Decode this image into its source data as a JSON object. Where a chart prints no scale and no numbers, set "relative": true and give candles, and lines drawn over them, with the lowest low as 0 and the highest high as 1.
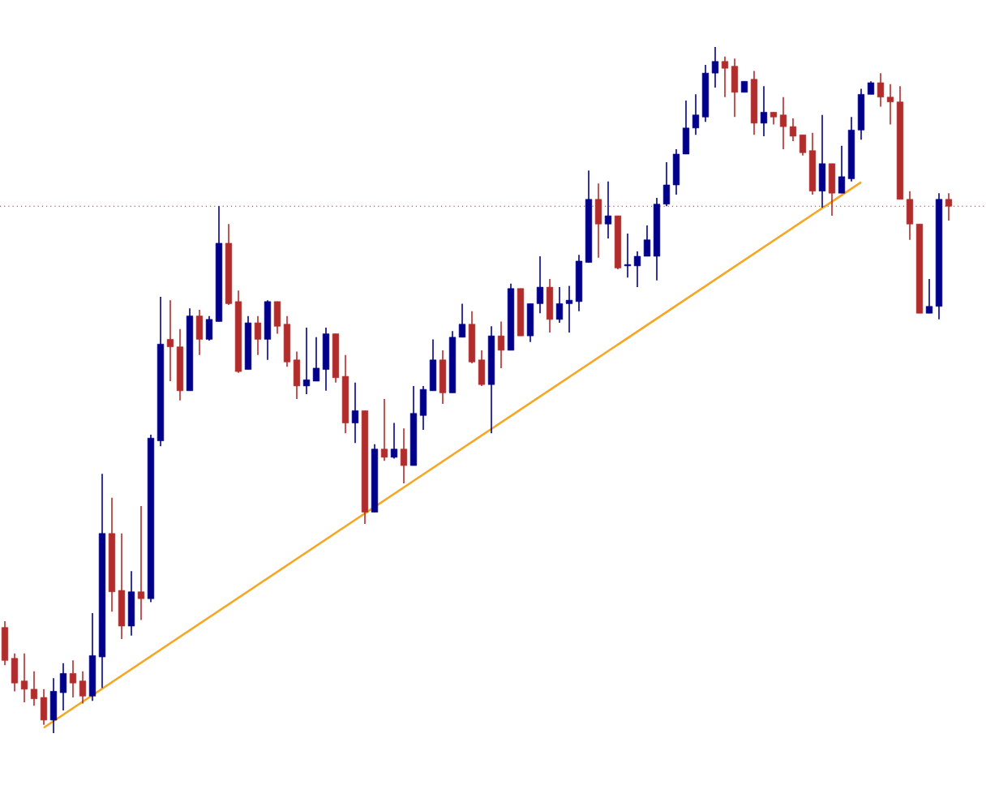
{
  "chart_data": {
    "type": "candlestick",
    "relative": true,
    "categories": [
      null,
      null,
      null,
      null,
      null,
      null,
      null,
      null,
      null,
      null,
      null,
      null,
      null,
      null,
      null,
      null,
      null,
      null,
      null,
      null,
      null,
      null,
      null,
      null,
      null,
      null,
      null,
      null,
      null,
      null,
      null,
      null,
      null,
      null,
      null,
      null,
      null,
      null,
      null,
      null,
      null,
      null,
      null,
      null,
      null,
      null,
      null,
      null,
      null,
      null,
      null,
      null,
      null,
      null,
      null,
      null,
      null,
      null,
      null,
      null,
      null,
      null,
      null,
      null,
      null,
      null,
      null,
      null,
      null,
      null,
      null,
      null,
      null,
      null,
      null,
      null,
      null,
      null,
      null,
      null,
      null,
      null,
      null,
      null,
      null,
      null,
      null,
      null,
      null,
      null,
      null,
      null,
      null,
      null,
      null,
      null,
      null,
      null
    ],
    "ohlc": [
      [
        0.154,
        0.163,
        0.099,
        0.106
      ],
      [
        0.109,
        0.116,
        0.061,
        0.073
      ],
      [
        0.076,
        0.116,
        0.045,
        0.064
      ],
      [
        0.064,
        0.09,
        0.04,
        0.05
      ],
      [
        0.052,
        0.064,
        0.012,
        0.019
      ],
      [
        0.019,
        0.08,
        0,
        0.061
      ],
      [
        0.059,
        0.102,
        0.033,
        0.087
      ],
      [
        0.087,
        0.106,
        0.052,
        0.073
      ],
      [
        0.076,
        0.09,
        0.043,
        0.054
      ],
      [
        0.054,
        0.175,
        0.047,
        0.113
      ],
      [
        0.111,
        0.378,
        0.066,
        0.291
      ],
      [
        0.291,
        0.343,
        0.177,
        0.206
      ],
      [
        0.208,
        0.291,
        0.137,
        0.156
      ],
      [
        0.156,
        0.236,
        0.142,
        0.206
      ],
      [
        0.206,
        0.331,
        0.165,
        0.196
      ],
      [
        0.196,
        0.435,
        0.191,
        0.43
      ],
      [
        0.426,
        0.636,
        0.418,
        0.567
      ],
      [
        0.574,
        0.631,
        0.513,
        0.563
      ],
      [
        0.563,
        0.589,
        0.485,
        0.499
      ],
      [
        0.499,
        0.619,
        0.499,
        0.608
      ],
      [
        0.608,
        0.617,
        0.551,
        0.574
      ],
      [
        0.574,
        0.608,
        0.572,
        0.603
      ],
      [
        0.6,
        0.768,
        0.6,
        0.714
      ],
      [
        0.714,
        0.742,
        0.624,
        0.626
      ],
      [
        0.629,
        0.645,
        0.525,
        0.527
      ],
      [
        0.53,
        0.608,
        0.53,
        0.598
      ],
      [
        0.598,
        0.608,
        0.551,
        0.574
      ],
      [
        0.574,
        0.631,
        0.544,
        0.629
      ],
      [
        0.629,
        0.629,
        0.582,
        0.593
      ],
      [
        0.596,
        0.608,
        0.534,
        0.541
      ],
      [
        0.544,
        0.556,
        0.487,
        0.506
      ],
      [
        0.506,
        0.591,
        0.494,
        0.515
      ],
      [
        0.513,
        0.577,
        0.513,
        0.532
      ],
      [
        0.53,
        0.591,
        0.499,
        0.582
      ],
      [
        0.582,
        0.582,
        0.511,
        0.518
      ],
      [
        0.52,
        0.551,
        0.437,
        0.452
      ],
      [
        0.452,
        0.511,
        0.423,
        0.47
      ],
      [
        0.47,
        0.47,
        0.305,
        0.322
      ],
      [
        0.322,
        0.421,
        0.322,
        0.414
      ],
      [
        0.414,
        0.487,
        0.397,
        0.402
      ],
      [
        0.402,
        0.452,
        0.4,
        0.414
      ],
      [
        0.414,
        0.444,
        0.364,
        0.39
      ],
      [
        0.39,
        0.506,
        0.39,
        0.466
      ],
      [
        0.463,
        0.506,
        0.442,
        0.501
      ],
      [
        0.499,
        0.574,
        0.499,
        0.544
      ],
      [
        0.544,
        0.558,
        0.48,
        0.496
      ],
      [
        0.496,
        0.586,
        0.496,
        0.577
      ],
      [
        0.577,
        0.626,
        0.577,
        0.596
      ],
      [
        0.596,
        0.615,
        0.539,
        0.541
      ],
      [
        0.544,
        0.558,
        0.506,
        0.508
      ],
      [
        0.508,
        0.593,
        0.437,
        0.579
      ],
      [
        0.579,
        0.6,
        0.532,
        0.558
      ],
      [
        0.558,
        0.655,
        0.558,
        0.648
      ],
      [
        0.648,
        0.648,
        0.579,
        0.579
      ],
      [
        0.579,
        0.626,
        0.57,
        0.626
      ],
      [
        0.626,
        0.695,
        0.612,
        0.65
      ],
      [
        0.65,
        0.662,
        0.584,
        0.603
      ],
      [
        0.603,
        0.65,
        0.598,
        0.626
      ],
      [
        0.626,
        0.652,
        0.584,
        0.631
      ],
      [
        0.629,
        0.697,
        0.615,
        0.688
      ],
      [
        0.686,
        0.82,
        0.686,
        0.778
      ],
      [
        0.778,
        0.801,
        0.693,
        0.742
      ],
      [
        0.742,
        0.804,
        0.721,
        0.754
      ],
      [
        0.754,
        0.754,
        0.676,
        0.678
      ],
      [
        0.681,
        0.728,
        0.664,
        0.683
      ],
      [
        0.681,
        0.702,
        0.65,
        0.695
      ],
      [
        0.695,
        0.74,
        0.695,
        0.719
      ],
      [
        0.695,
        0.78,
        0.66,
        0.771
      ],
      [
        0.771,
        0.832,
        0.768,
        0.799
      ],
      [
        0.799,
        0.851,
        0.785,
        0.844
      ],
      [
        0.844,
        0.922,
        0.844,
        0.882
      ],
      [
        0.882,
        0.931,
        0.872,
        0.901
      ],
      [
        0.898,
        0.974,
        0.891,
        0.962
      ],
      [
        0.962,
        1,
        0.941,
        0.979
      ],
      [
        0.979,
        0.986,
        0.927,
        0.969
      ],
      [
        0.972,
        0.983,
        0.898,
        0.934
      ],
      [
        0.934,
        0.95,
        0.934,
        0.95
      ],
      [
        0.953,
        0.965,
        0.872,
        0.889
      ],
      [
        0.889,
        0.943,
        0.87,
        0.905
      ],
      [
        0.905,
        0.905,
        0.887,
        0.898
      ],
      [
        0.901,
        0.927,
        0.851,
        0.884
      ],
      [
        0.884,
        0.896,
        0.863,
        0.87
      ],
      [
        0.872,
        0.872,
        0.842,
        0.846
      ],
      [
        0.849,
        0.875,
        0.785,
        0.79
      ],
      [
        0.79,
        0.901,
        0.766,
        0.83
      ],
      [
        0.83,
        0.83,
        0.754,
        0.787
      ],
      [
        0.787,
        0.856,
        0.787,
        0.811
      ],
      [
        0.808,
        0.898,
        0.804,
        0.879
      ],
      [
        0.879,
        0.939,
        0.865,
        0.931
      ],
      [
        0.931,
        0.95,
        0.931,
        0.948
      ],
      [
        0.948,
        0.962,
        0.913,
        0.927
      ],
      [
        0.927,
        0.946,
        0.887,
        0.92
      ],
      [
        0.92,
        0.943,
        0.778,
        0.778
      ],
      [
        0.778,
        0.79,
        0.719,
        0.742
      ],
      [
        0.742,
        0.742,
        0.612,
        0.612
      ],
      [
        0.612,
        0.662,
        0.612,
        0.622
      ],
      [
        0.622,
        0.787,
        0.603,
        0.778
      ],
      [
        0.778,
        0.787,
        0.747,
        0.768
      ]
    ],
    "colors": [
      "#b22c2c",
      "#b22c2c",
      "#b22c2c",
      "#b22c2c",
      "#b22c2c",
      "#00008b",
      "#00008b",
      "#b22c2c",
      "#b22c2c",
      "#00008b",
      "#00008b",
      "#b22c2c",
      "#b22c2c",
      "#00008b",
      "#b22c2c",
      "#00008b",
      "#00008b",
      "#b22c2c",
      "#b22c2c",
      "#00008b",
      "#b22c2c",
      "#00008b",
      "#00008b",
      "#b22c2c",
      "#b22c2c",
      "#00008b",
      "#b22c2c",
      "#00008b",
      "#b22c2c",
      "#b22c2c",
      "#b22c2c",
      "#00008b",
      "#00008b",
      "#00008b",
      "#b22c2c",
      "#b22c2c",
      "#00008b",
      "#b22c2c",
      "#00008b",
      "#b22c2c",
      "#00008b",
      "#b22c2c",
      "#00008b",
      "#00008b",
      "#00008b",
      "#b22c2c",
      "#00008b",
      "#00008b",
      "#b22c2c",
      "#b22c2c",
      "#00008b",
      "#b22c2c",
      "#00008b",
      "#b22c2c",
      "#00008b",
      "#00008b",
      "#b22c2c",
      "#00008b",
      "#00008b",
      "#00008b",
      "#00008b",
      "#b22c2c",
      "#00008b",
      "#b22c2c",
      "#00008b",
      "#00008b",
      "#00008b",
      "#00008b",
      "#00008b",
      "#00008b",
      "#00008b",
      "#00008b",
      "#00008b",
      "#00008b",
      "#b22c2c",
      "#b22c2c",
      "#00008b",
      "#b22c2c",
      "#00008b",
      "#b22c2c",
      "#b22c2c",
      "#b22c2c",
      "#b22c2c",
      "#b22c2c",
      "#00008b",
      "#b22c2c",
      "#00008b",
      "#00008b",
      "#00008b",
      "#00008b",
      "#b22c2c",
      "#b22c2c",
      "#b22c2c",
      "#b22c2c",
      "#b22c2c",
      "#00008b",
      "#00008b",
      "#b22c2c"
    ],
    "series": [
      {
        "type": "line",
        "values": [
          null,
          null,
          null,
          null,
          0.008,
          null,
          null,
          null,
          null,
          null,
          null,
          null,
          null,
          null,
          null,
          null,
          null,
          null,
          null,
          null,
          null,
          null,
          null,
          null,
          null,
          null,
          null,
          null,
          null,
          null,
          null,
          null,
          null,
          null,
          null,
          null,
          null,
          null,
          null,
          null,
          null,
          null,
          null,
          null,
          null,
          null,
          null,
          null,
          null,
          null,
          null,
          null,
          null,
          null,
          null,
          null,
          null,
          null,
          null,
          null,
          null,
          null,
          null,
          null,
          null,
          null,
          null,
          null,
          null,
          null,
          null,
          null,
          null,
          null,
          null,
          null,
          null,
          null,
          null,
          null,
          null,
          null,
          null,
          null,
          null,
          null,
          null,
          null,
          0.803,
          null,
          null,
          null,
          null,
          null,
          null,
          null,
          null,
          null
        ],
        "color": "#f5a623"
      }
    ],
    "ref_lines": [
      {
        "axis": "y",
        "value": 0.768,
        "color": "#8b3a3a",
        "line_style": "dotted"
      }
    ]
  }
}
